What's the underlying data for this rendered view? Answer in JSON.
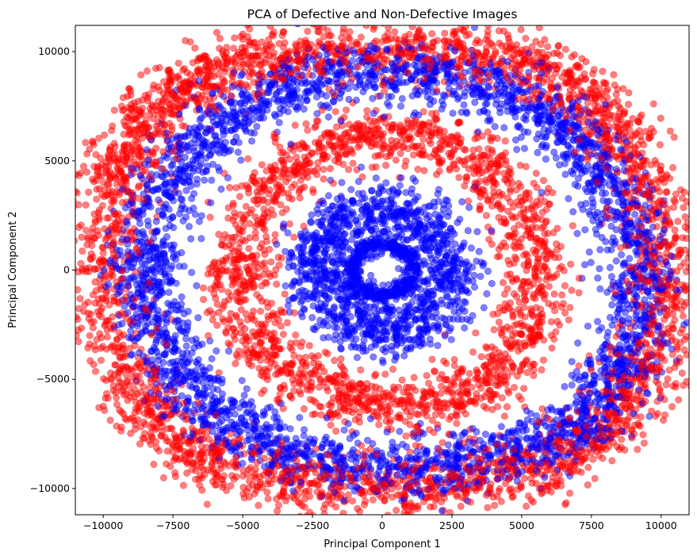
{
  "chart_data": {
    "type": "scatter",
    "title": "PCA of Defective and Non-Defective Images",
    "xlabel": "Principal Component 1",
    "ylabel": "Principal Component 2",
    "xlim": [
      -11000,
      11000
    ],
    "ylim": [
      -11200,
      11200
    ],
    "xticks": [
      -10000,
      -7500,
      -5000,
      -2500,
      0,
      2500,
      5000,
      7500,
      10000
    ],
    "xtick_labels": [
      "−10000",
      "−7500",
      "−5000",
      "−2500",
      "0",
      "2500",
      "5000",
      "7500",
      "10000"
    ],
    "yticks": [
      -10000,
      -5000,
      0,
      5000,
      10000
    ],
    "ytick_labels": [
      "−10000",
      "−5000",
      "0",
      "5000",
      "10000"
    ],
    "grid": false,
    "legend": "none",
    "series": [
      {
        "color": "#ff0000",
        "alpha": 0.5,
        "rings": [
          {
            "x": [
              -9950,
              -9800,
              -9700,
              -9400,
              -9100,
              -8800,
              -8300,
              -7900,
              -7200,
              -6600,
              -5800,
              -4900,
              -3900,
              -2800,
              -1600,
              -400,
              800,
              2000,
              3200,
              4300,
              5300,
              6200,
              7000,
              7600,
              8200,
              8700,
              9100,
              9500,
              9800,
              10050,
              10100,
              10000,
              9800,
              9500,
              9100,
              8600,
              8000,
              7300,
              6500,
              5600,
              4600,
              3500,
              2300,
              1100,
              -100,
              -1300,
              -2500,
              -3600,
              -4700,
              -5700,
              -6600,
              -7400,
              -8100,
              -8700,
              -9200,
              -9600,
              -9850
            ],
            "y": [
              200,
              1700,
              3200,
              4300,
              5100,
              6000,
              6900,
              7500,
              8300,
              8900,
              9200,
              9500,
              9700,
              9850,
              9950,
              10000,
              10000,
              9950,
              9800,
              9600,
              9300,
              8800,
              8300,
              7600,
              6800,
              5900,
              4800,
              3600,
              2100,
              700,
              -300,
              -1800,
              -3200,
              -4400,
              -5400,
              -6300,
              -7100,
              -7800,
              -8400,
              -8900,
              -9300,
              -9550,
              -9750,
              -9900,
              -10000,
              -9950,
              -9800,
              -9550,
              -9250,
              -8850,
              -8300,
              -7600,
              -6800,
              -5800,
              -4700,
              -3300,
              -1600
            ]
          },
          {
            "x": [
              -5000,
              -4800,
              -4500,
              -4100,
              -3600,
              -3000,
              -2300,
              -1500,
              -700,
              100,
              900,
              1700,
              2500,
              3200,
              3900,
              4400,
              4900,
              5200,
              5450,
              5550,
              5500,
              5300,
              5000,
              4600,
              4100,
              3500,
              2800,
              2000,
              1200,
              400,
              -400,
              -1200,
              -2000,
              -2700,
              -3400,
              -4000,
              -4500,
              -4850,
              -5100,
              -5200
            ],
            "y": [
              0,
              1300,
              2500,
              3500,
              4300,
              5000,
              5500,
              5900,
              6100,
              6200,
              6150,
              5950,
              5600,
              5150,
              4500,
              3800,
              2900,
              1900,
              900,
              -200,
              -1300,
              -2300,
              -3200,
              -4000,
              -4700,
              -5300,
              -5700,
              -6000,
              -6150,
              -6200,
              -6100,
              -5900,
              -5600,
              -5150,
              -4600,
              -3900,
              -3100,
              -2200,
              -1200,
              -100
            ]
          }
        ]
      },
      {
        "color": "#0000ff",
        "alpha": 0.5,
        "rings": [
          {
            "x": [
              -8500,
              -8300,
              -8000,
              -7600,
              -7100,
              -6500,
              -5800,
              -5000,
              -4100,
              -3100,
              -2100,
              -1000,
              100,
              1200,
              2300,
              3300,
              4300,
              5200,
              6000,
              6700,
              7300,
              7800,
              8200,
              8600,
              8900,
              9100,
              9200,
              9100,
              8900,
              8600,
              8200,
              7700,
              7100,
              6400,
              5600,
              4700,
              3700,
              2600,
              1500,
              400,
              -700,
              -1800,
              -2900,
              -3900,
              -4800,
              -5600,
              -6300,
              -6900,
              -7400,
              -7800,
              -8100,
              -8350,
              -8500
            ],
            "y": [
              0,
              1500,
              2800,
              4000,
              5100,
              6000,
              6800,
              7500,
              8000,
              8400,
              8700,
              8900,
              9000,
              8950,
              8800,
              8500,
              8100,
              7600,
              7000,
              6300,
              5500,
              4600,
              3600,
              2500,
              1300,
              100,
              -1100,
              -2300,
              -3500,
              -4500,
              -5400,
              -6200,
              -6900,
              -7500,
              -8000,
              -8400,
              -8700,
              -8900,
              -9000,
              -9000,
              -8900,
              -8700,
              -8400,
              -8000,
              -7500,
              -6900,
              -6200,
              -5400,
              -4500,
              -3500,
              -2400,
              -1200,
              0
            ]
          },
          {
            "x": [
              -2300,
              -2200,
              -2000,
              -1700,
              -1300,
              -800,
              -300,
              300,
              800,
              1300,
              1700,
              2000,
              2200,
              2300,
              2250,
              2050,
              1750,
              1350,
              900,
              400,
              -100,
              -600,
              -1100,
              -1500,
              -1850,
              -2100,
              -2250
            ],
            "y": [
              0,
              700,
              1300,
              1900,
              2300,
              2600,
              2750,
              2750,
              2600,
              2300,
              1900,
              1300,
              700,
              0,
              -700,
              -1300,
              -1900,
              -2300,
              -2600,
              -2750,
              -2750,
              -2600,
              -2300,
              -1900,
              -1300,
              -700,
              -100
            ]
          },
          {
            "x": [
              -1100,
              -1000,
              -800,
              -500,
              -200,
              200,
              500,
              800,
              1000,
              1100,
              1000,
              800,
              500,
              200,
              -200,
              -500,
              -800,
              -1000
            ],
            "y": [
              0,
              450,
              850,
              1050,
              1150,
              1150,
              1050,
              850,
              450,
              0,
              -450,
              -850,
              -1050,
              -1150,
              -1150,
              -1050,
              -850,
              -450
            ]
          }
        ]
      }
    ]
  }
}
